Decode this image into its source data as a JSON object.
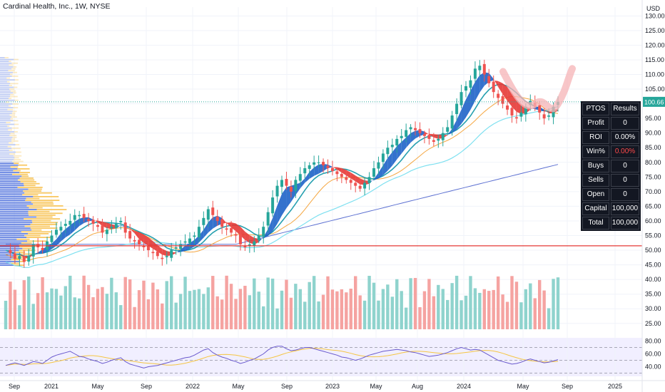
{
  "header": {
    "title": "Cardinal Health, Inc., 1W, NYSE",
    "currency": "USD"
  },
  "price_tag": {
    "value": "100.66",
    "color": "#26a69a"
  },
  "ptos_table": {
    "header": [
      "PTOS",
      "Results"
    ],
    "rows": [
      {
        "label": "Profit",
        "value": "0"
      },
      {
        "label": "ROI",
        "value": "0.00%"
      },
      {
        "label": "Win%",
        "value": "0.00%"
      },
      {
        "label": "Buys",
        "value": "0"
      },
      {
        "label": "Sells",
        "value": "0"
      },
      {
        "label": "Open",
        "value": "0"
      },
      {
        "label": "Capital",
        "value": "100,000"
      },
      {
        "label": "Total",
        "value": "100,000"
      }
    ]
  },
  "chart_data": {
    "type": "line",
    "symbol": "Cardinal Health, Inc., 1W, NYSE",
    "x_tick_labels": [
      "Sep",
      "2021",
      "May",
      "Sep",
      "2022",
      "May",
      "Sep",
      "2023",
      "May",
      "Aug",
      "2024",
      "May",
      "Sep",
      "2025"
    ],
    "y_ticks": [
      130,
      125,
      120,
      115,
      110,
      105,
      100,
      95,
      90,
      85,
      80,
      75,
      70,
      65,
      60,
      55,
      50,
      45,
      40,
      35,
      30,
      25
    ],
    "ylim": [
      23,
      133
    ],
    "last_price": 100.66,
    "horizontal_level": 51.5,
    "colors": {
      "up": "#26a69a",
      "down": "#ef5350",
      "ribbon_up": "#1e63c8",
      "ribbon_down": "#e53935",
      "ma_teal": "#26a0b0",
      "ma_orange": "#f5a742",
      "ma_cyan": "#7de0f0",
      "ma_blue": "#5b6fd1",
      "level": "#e53935"
    },
    "series": [
      {
        "name": "Close",
        "values": [
          50,
          49,
          47,
          48,
          46,
          48,
          52,
          51,
          50,
          53,
          55,
          57,
          58,
          59,
          60,
          62,
          62,
          61,
          60,
          59,
          58,
          56,
          57,
          58,
          59,
          60,
          56,
          54,
          53,
          52,
          51,
          50,
          49,
          48,
          47,
          48,
          50,
          51,
          52,
          53,
          54,
          55,
          58,
          61,
          64,
          62,
          60,
          58,
          57,
          56,
          55,
          52,
          51,
          52,
          53,
          55,
          58,
          63,
          68,
          72,
          74,
          72,
          70,
          74,
          76,
          78,
          79,
          80,
          80,
          79,
          78,
          77,
          76,
          75,
          74,
          73,
          72,
          71,
          73,
          75,
          78,
          80,
          83,
          85,
          86,
          88,
          89,
          91,
          92,
          91,
          90,
          89,
          88,
          87,
          88,
          90,
          92,
          96,
          100,
          104,
          106,
          108,
          112,
          113,
          110,
          107,
          104,
          102,
          100,
          98,
          96,
          95,
          97,
          99,
          101,
          99,
          97,
          95,
          96,
          99,
          100.66
        ]
      },
      {
        "name": "RSI",
        "values": [
          42,
          44,
          46,
          44,
          42,
          45,
          48,
          47,
          45,
          50,
          55,
          58,
          60,
          62,
          64,
          60,
          56,
          55,
          52,
          50,
          48,
          45,
          47,
          50,
          52,
          54,
          48,
          44,
          42,
          40,
          38,
          40,
          41,
          42,
          44,
          46,
          48,
          50,
          52,
          54,
          55,
          58,
          62,
          66,
          68,
          62,
          58,
          55,
          53,
          50,
          48,
          45,
          47,
          50,
          52,
          56,
          60,
          66,
          70,
          72,
          72,
          68,
          65,
          66,
          68,
          70,
          70,
          68,
          66,
          64,
          62,
          60,
          58,
          55,
          54,
          52,
          50,
          52,
          55,
          58,
          60,
          62,
          64,
          65,
          66,
          67,
          66,
          65,
          63,
          62,
          60,
          58,
          56,
          57,
          58,
          60,
          62,
          65,
          68,
          70,
          68,
          66,
          67,
          66,
          62,
          58,
          54,
          50,
          48,
          46,
          44,
          45,
          47,
          50,
          52,
          50,
          48,
          46,
          47,
          49,
          51
        ]
      }
    ],
    "rsi_levels": [
      70,
      50,
      30
    ],
    "rsi_ticks": [
      80,
      60,
      40
    ]
  }
}
